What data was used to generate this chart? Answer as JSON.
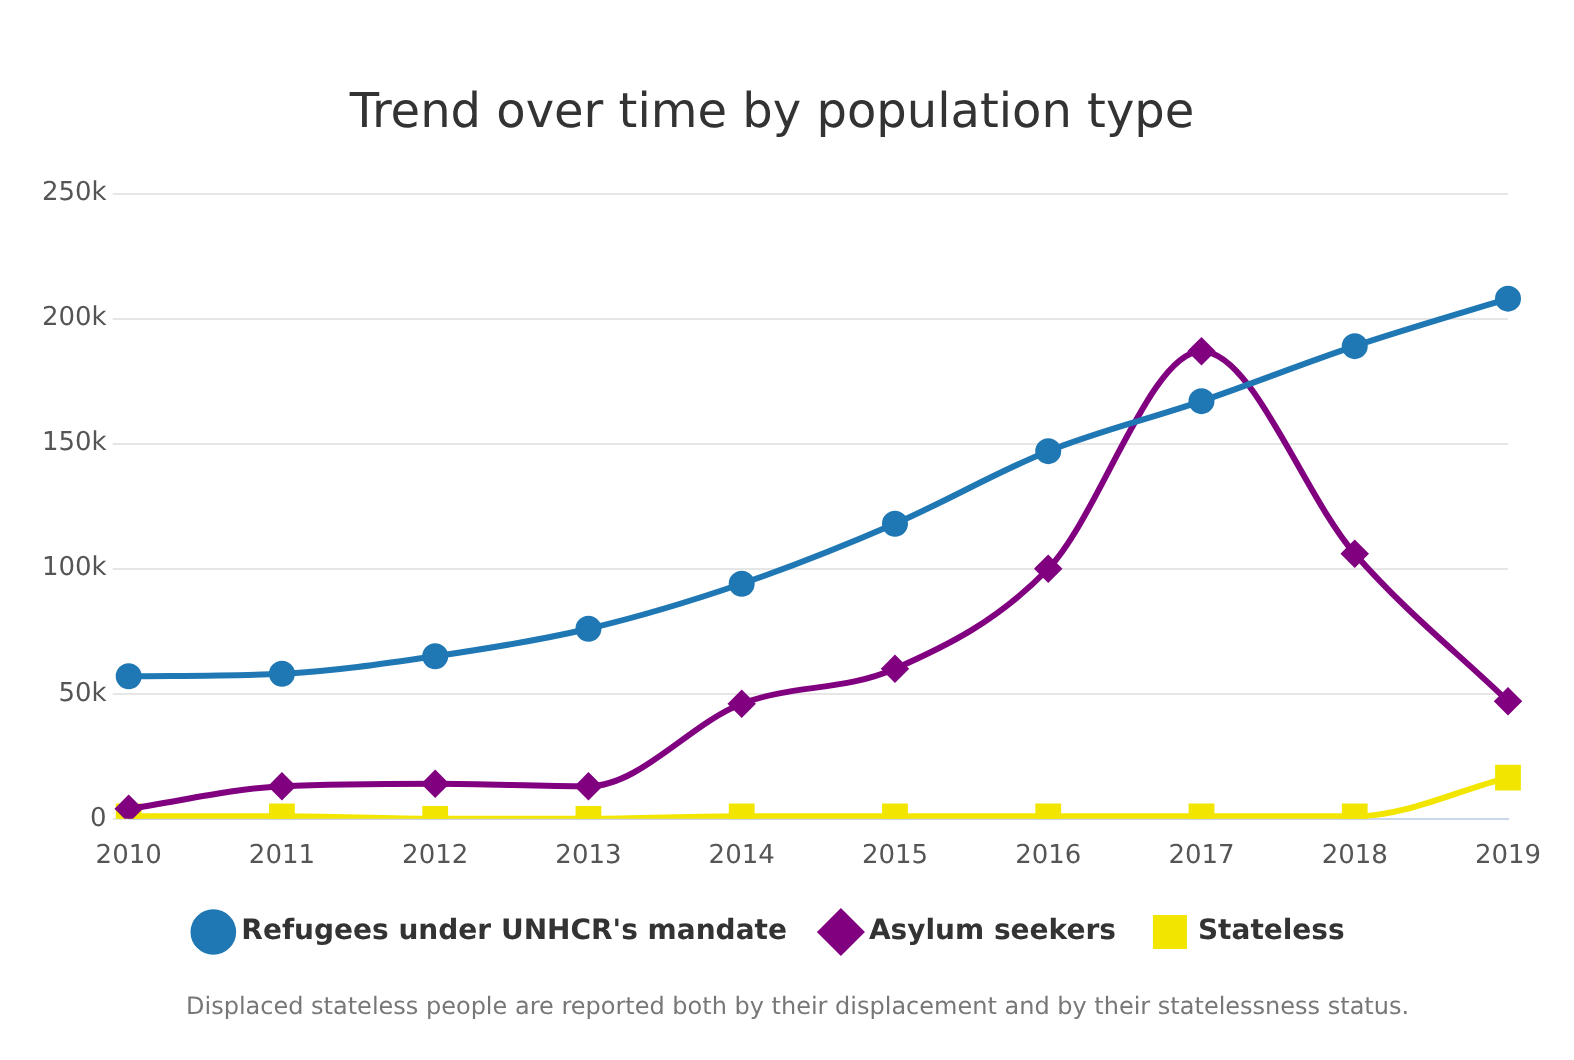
{
  "chart_data": {
    "type": "line",
    "title": "Trend over time by population type",
    "categories": [
      "2010",
      "2011",
      "2012",
      "2013",
      "2014",
      "2015",
      "2016",
      "2017",
      "2018",
      "2019"
    ],
    "series": [
      {
        "name": "Refugees under UNHCR's mandate",
        "color": "#1f78b4",
        "marker": "circle",
        "values": [
          57000,
          58000,
          65000,
          76000,
          94000,
          118000,
          147000,
          167000,
          189000,
          208000
        ]
      },
      {
        "name": "Asylum seekers",
        "color": "#800080",
        "marker": "diamond",
        "values": [
          4000,
          13000,
          14000,
          13000,
          46000,
          60000,
          100000,
          187000,
          106000,
          47000
        ]
      },
      {
        "name": "Stateless",
        "color": "#f2e600",
        "marker": "square",
        "values": [
          1000,
          1000,
          0,
          0,
          1000,
          1000,
          1000,
          1000,
          1000,
          16500
        ]
      }
    ],
    "ylim": [
      0,
      250000
    ],
    "yticks": [
      {
        "value": 0,
        "label": "0"
      },
      {
        "value": 50000,
        "label": "50k"
      },
      {
        "value": 100000,
        "label": "100k"
      },
      {
        "value": 150000,
        "label": "150k"
      },
      {
        "value": 200000,
        "label": "200k"
      },
      {
        "value": 250000,
        "label": "250k"
      }
    ],
    "grid": "y",
    "legend": "bottom",
    "annotations": [
      "Displaced stateless people are reported both by their displacement and by their statelessness status."
    ]
  }
}
